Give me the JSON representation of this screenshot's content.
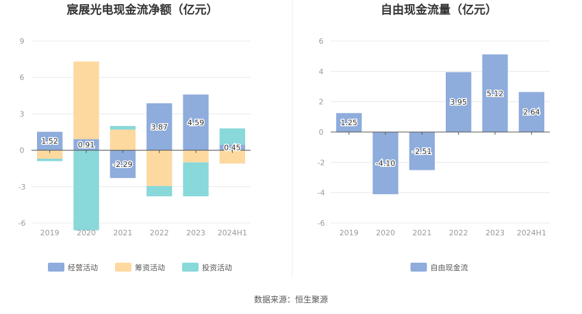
{
  "source": "数据来源：恒生聚源",
  "colors": {
    "operating": "#8eacdc",
    "financing": "#fdd9a0",
    "investing": "#89d8da",
    "free_cash": "#8eacdc",
    "grid": "#e8e8e8",
    "zero": "#555555"
  },
  "chart_data": [
    {
      "type": "bar",
      "stacked": true,
      "title": "宸展光电现金流净额（亿元）",
      "categories": [
        "2019",
        "2020",
        "2021",
        "2022",
        "2023",
        "2024H1"
      ],
      "ylim": [
        -6,
        9
      ],
      "yticks": [
        9,
        6,
        3,
        0,
        -3,
        -6
      ],
      "grid": true,
      "legend_position": "bottom",
      "series": [
        {
          "name": "经营活动",
          "color_key": "operating",
          "values": [
            1.52,
            0.91,
            -2.29,
            3.87,
            4.59,
            0.45
          ],
          "labels": [
            "1.52",
            "0.91",
            "-2.29",
            "3.87",
            "4.59",
            "0.45"
          ]
        },
        {
          "name": "筹资活动",
          "color_key": "financing",
          "values": [
            -0.7,
            6.4,
            1.7,
            -2.95,
            -1.0,
            -1.1
          ]
        },
        {
          "name": "投资活动",
          "color_key": "investing",
          "values": [
            -0.2,
            -6.6,
            0.3,
            -0.85,
            -2.8,
            1.35
          ]
        }
      ]
    },
    {
      "type": "bar",
      "stacked": false,
      "title": "自由现金流量（亿元）",
      "categories": [
        "2019",
        "2020",
        "2021",
        "2022",
        "2023",
        "2024H1"
      ],
      "ylim": [
        -6,
        6
      ],
      "yticks": [
        6,
        4,
        2,
        0,
        -2,
        -4,
        -6
      ],
      "grid": true,
      "legend_position": "bottom",
      "series": [
        {
          "name": "自由现金流",
          "color_key": "free_cash",
          "values": [
            1.25,
            -4.1,
            -2.51,
            3.95,
            5.12,
            2.64
          ],
          "labels": [
            "1.25",
            "-4.10",
            "-2.51",
            "3.95",
            "5.12",
            "2.64"
          ]
        }
      ]
    }
  ]
}
